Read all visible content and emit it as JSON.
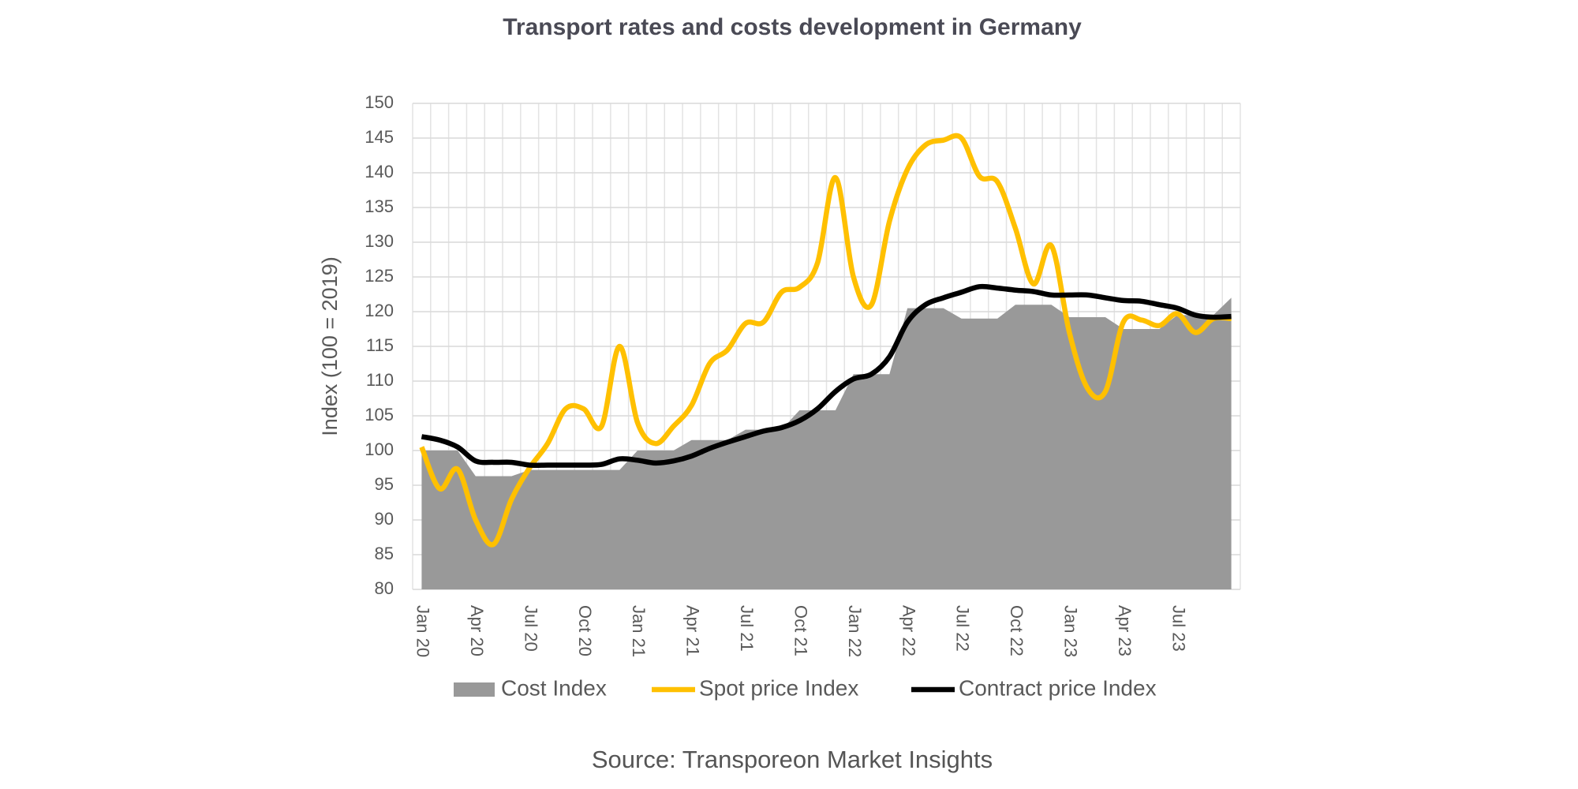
{
  "chart_data": {
    "type": "line",
    "title": "Transport rates and costs development in Germany",
    "y_label": "Index (100 = 2019)",
    "source": "Source: Transporeon Market Insights",
    "categories": [
      "Jan 20",
      null,
      null,
      "Apr 20",
      null,
      null,
      "Jul 20",
      null,
      null,
      "Oct 20",
      null,
      null,
      "Jan 21",
      null,
      null,
      "Apr 21",
      null,
      null,
      "Jul 21",
      null,
      null,
      "Oct 21",
      null,
      null,
      "Jan 22",
      null,
      null,
      "Apr 22",
      null,
      null,
      "Jul 22",
      null,
      null,
      "Oct 22",
      null,
      null,
      "Jan 23",
      null,
      null,
      "Apr 23",
      null,
      null,
      "Jul 23",
      null,
      null,
      null
    ],
    "ylim": [
      80,
      150
    ],
    "yticks": [
      80,
      85,
      90,
      95,
      100,
      105,
      110,
      115,
      120,
      125,
      130,
      135,
      140,
      145,
      150
    ],
    "grid": true,
    "legend": "bottom",
    "series": [
      {
        "name": "Cost Index",
        "style": "area",
        "color": "#999999",
        "values": [
          100,
          100,
          100,
          96.3,
          96.3,
          96.3,
          97.2,
          97.2,
          97.2,
          97.2,
          97.2,
          97.2,
          100,
          100,
          100,
          101.5,
          101.5,
          101.5,
          103,
          103,
          103,
          105.8,
          105.8,
          105.8,
          111,
          111,
          111,
          120.5,
          120.5,
          120.5,
          119,
          119,
          119,
          121,
          121,
          121,
          119.2,
          119.2,
          119.2,
          117.5,
          117.5,
          117.5,
          119.5,
          119.5,
          119.5,
          122
        ]
      },
      {
        "name": "Spot price Index",
        "style": "line",
        "color": "#ffc000",
        "values": [
          100.5,
          94.5,
          97.3,
          90,
          86.5,
          93,
          97.5,
          101,
          106,
          106,
          103.5,
          115,
          104,
          101,
          103.5,
          106.5,
          112.5,
          114.5,
          118.3,
          118.5,
          122.8,
          123.5,
          127,
          139.3,
          125,
          121,
          133,
          140.5,
          144,
          144.7,
          145,
          139.5,
          138.7,
          132,
          124,
          129.5,
          117,
          109,
          108.5,
          118.5,
          118.8,
          118,
          119.7,
          117,
          119,
          119
        ]
      },
      {
        "name": "Contract price Index",
        "style": "line",
        "color": "#000000",
        "values": [
          102,
          101.5,
          100.5,
          98.5,
          98.3,
          98.3,
          97.9,
          97.9,
          97.9,
          97.9,
          98,
          98.8,
          98.6,
          98.2,
          98.5,
          99.2,
          100.3,
          101.2,
          102,
          102.8,
          103.3,
          104.3,
          106,
          108.5,
          110.3,
          111,
          113.5,
          118.5,
          121,
          122,
          122.8,
          123.6,
          123.4,
          123.1,
          122.9,
          122.4,
          122.4,
          122.4,
          122,
          121.6,
          121.5,
          121,
          120.5,
          119.5,
          119.2,
          119.3
        ]
      }
    ]
  }
}
